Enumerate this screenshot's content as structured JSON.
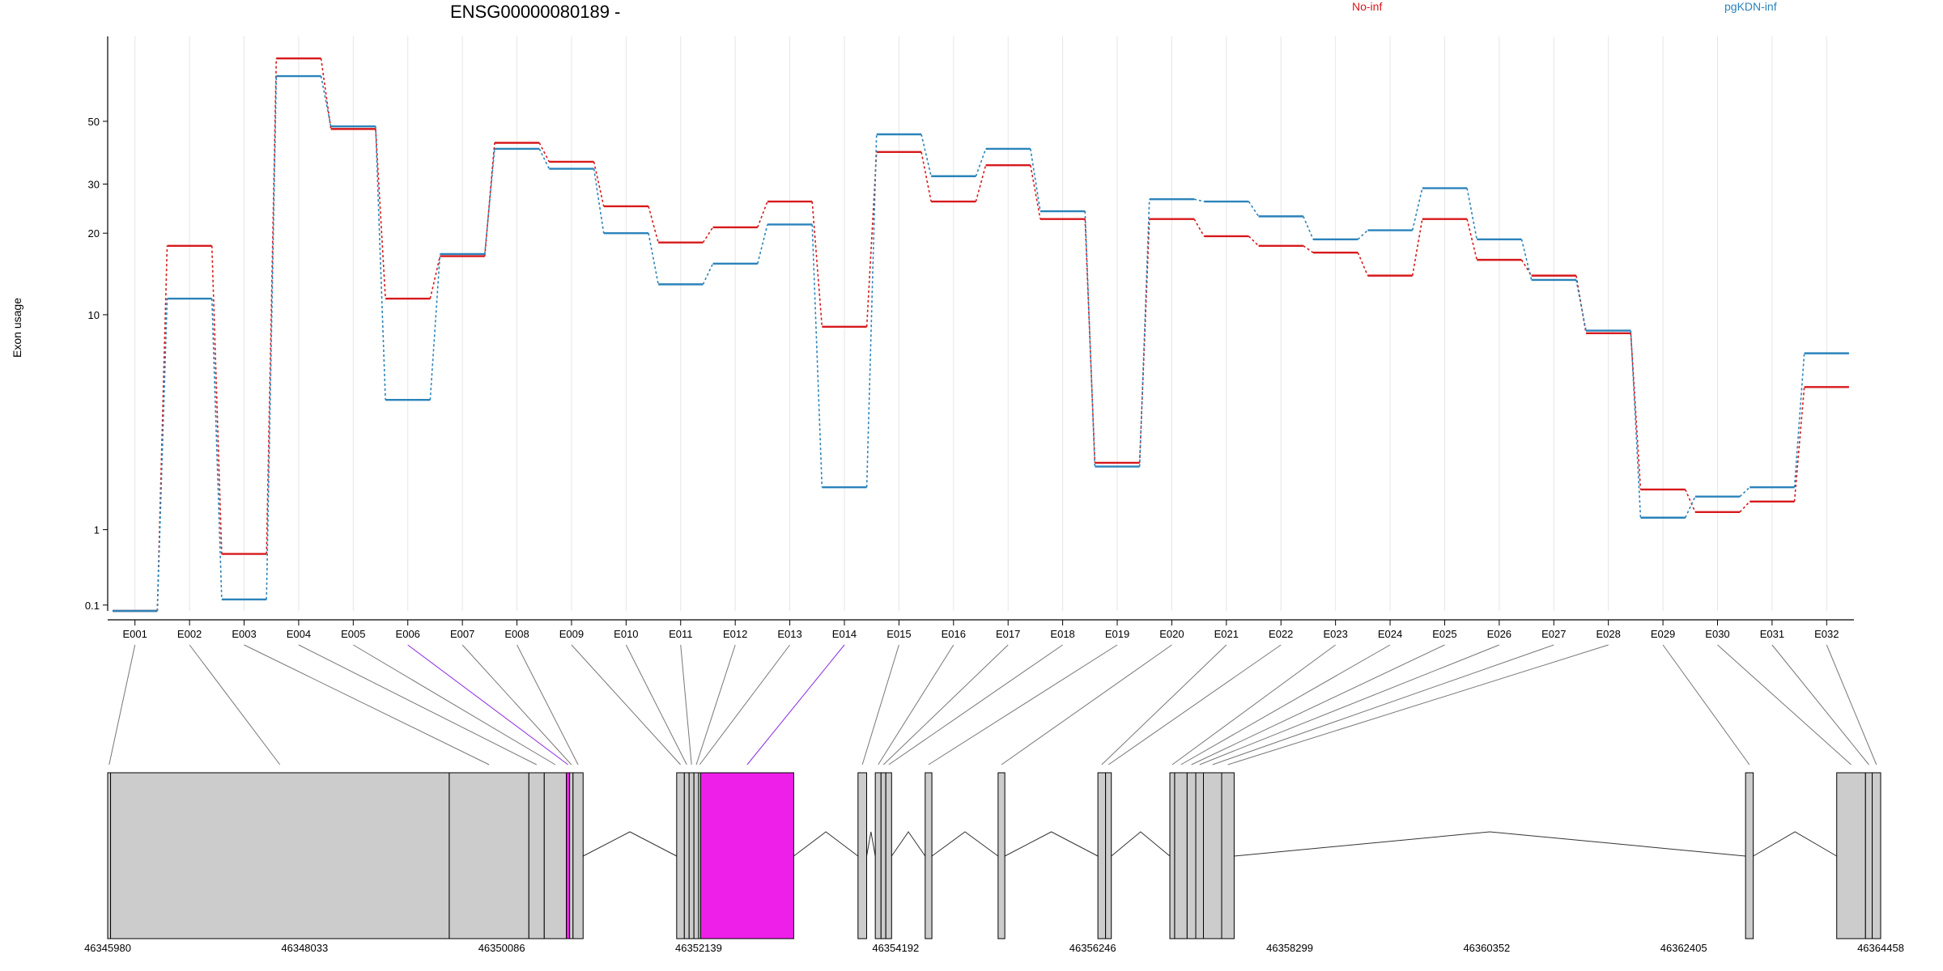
{
  "colors": {
    "no_inf": "#d7191c",
    "pgkdn_inf": "#2b83ba",
    "exon_fill": "#cccccc",
    "exon_highlight": "#ee1fe8",
    "highlight_connector": "#8b2be2",
    "grid": "#e6e6e6"
  },
  "chart_data": {
    "type": "line",
    "title": "ENSG00000080189 -",
    "ylabel": "Exon usage",
    "y_scale": "log1p",
    "y_ticks": [
      0.1,
      1,
      10,
      20,
      30,
      50
    ],
    "y_tick_labels": [
      "0.1",
      "1",
      "10",
      "20",
      "30",
      "50"
    ],
    "ylim": [
      0.05,
      99
    ],
    "categories": [
      "E001",
      "E002",
      "E003",
      "E004",
      "E005",
      "E006",
      "E007",
      "E008",
      "E009",
      "E010",
      "E011",
      "E012",
      "E013",
      "E014",
      "E015",
      "E016",
      "E017",
      "E018",
      "E019",
      "E020",
      "E021",
      "E022",
      "E023",
      "E024",
      "E025",
      "E026",
      "E027",
      "E028",
      "E029",
      "E030",
      "E031",
      "E032"
    ],
    "series": [
      {
        "name": "No-inf",
        "color": "#d7191c",
        "values": [
          0.05,
          18,
          0.65,
          83,
          47,
          11.5,
          16.5,
          42,
          36,
          25,
          18.5,
          21,
          26,
          9,
          39,
          26,
          35,
          22.5,
          2.4,
          22.5,
          19.5,
          18,
          17,
          14,
          22.5,
          16,
          14,
          8.5,
          1.75,
          1.3,
          1.5,
          5.2
        ]
      },
      {
        "name": "pgKDN-inf",
        "color": "#2b83ba",
        "values": [
          0.05,
          11.5,
          0.15,
          72,
          48,
          4.6,
          16.8,
          40,
          34,
          20,
          13,
          15.5,
          21.5,
          1.8,
          45,
          32,
          40,
          24,
          2.3,
          26.5,
          26,
          23,
          19,
          20.5,
          29,
          19,
          13.5,
          8.7,
          1.2,
          1.6,
          1.8,
          7.1
        ]
      }
    ],
    "gene_coordinates": {
      "start": 46345980,
      "end": 46364458,
      "tick_values": [
        46345980,
        46348033,
        46350086,
        46352139,
        46354192,
        46356246,
        46358299,
        46360352,
        46362405,
        46364458
      ],
      "exons": [
        {
          "id": "E001",
          "start": 46345980,
          "end": 46346010,
          "highlight": false
        },
        {
          "id": "E002",
          "start": 46346010,
          "end": 46349540,
          "highlight": false
        },
        {
          "id": "E003",
          "start": 46349540,
          "end": 46350370,
          "highlight": false
        },
        {
          "id": "E004",
          "start": 46350370,
          "end": 46350530,
          "highlight": false
        },
        {
          "id": "E005",
          "start": 46350530,
          "end": 46350760,
          "highlight": false
        },
        {
          "id": "E006",
          "start": 46350760,
          "end": 46350795,
          "highlight": true
        },
        {
          "id": "E007",
          "start": 46350795,
          "end": 46350830,
          "highlight": false
        },
        {
          "id": "E008",
          "start": 46350830,
          "end": 46350935,
          "highlight": false
        },
        {
          "id": "E009",
          "start": 46351910,
          "end": 46351990,
          "highlight": false
        },
        {
          "id": "E010",
          "start": 46351990,
          "end": 46352040,
          "highlight": false
        },
        {
          "id": "E011",
          "start": 46352040,
          "end": 46352090,
          "highlight": false
        },
        {
          "id": "E012",
          "start": 46352090,
          "end": 46352139,
          "highlight": false
        },
        {
          "id": "E013",
          "start": 46352139,
          "end": 46352160,
          "highlight": false
        },
        {
          "id": "E014",
          "start": 46352160,
          "end": 46353130,
          "highlight": true
        },
        {
          "id": "E015",
          "start": 46353800,
          "end": 46353890,
          "highlight": false
        },
        {
          "id": "E016",
          "start": 46353980,
          "end": 46354040,
          "highlight": false
        },
        {
          "id": "E017",
          "start": 46354040,
          "end": 46354090,
          "highlight": false
        },
        {
          "id": "E018",
          "start": 46354090,
          "end": 46354150,
          "highlight": false
        },
        {
          "id": "E019",
          "start": 46354500,
          "end": 46354570,
          "highlight": false
        },
        {
          "id": "E020",
          "start": 46355260,
          "end": 46355330,
          "highlight": false
        },
        {
          "id": "E021",
          "start": 46356300,
          "end": 46356380,
          "highlight": false
        },
        {
          "id": "E022",
          "start": 46356380,
          "end": 46356440,
          "highlight": false
        },
        {
          "id": "E023",
          "start": 46357050,
          "end": 46357100,
          "highlight": false
        },
        {
          "id": "E024",
          "start": 46357100,
          "end": 46357230,
          "highlight": false
        },
        {
          "id": "E025",
          "start": 46357230,
          "end": 46357320,
          "highlight": false
        },
        {
          "id": "E026",
          "start": 46357320,
          "end": 46357400,
          "highlight": false
        },
        {
          "id": "E027",
          "start": 46357400,
          "end": 46357590,
          "highlight": false
        },
        {
          "id": "E028",
          "start": 46357590,
          "end": 46357720,
          "highlight": false
        },
        {
          "id": "E029",
          "start": 46363050,
          "end": 46363130,
          "highlight": false
        },
        {
          "id": "E030",
          "start": 46364000,
          "end": 46364300,
          "highlight": false
        },
        {
          "id": "E031",
          "start": 46364300,
          "end": 46364370,
          "highlight": false
        },
        {
          "id": "E032",
          "start": 46364370,
          "end": 46364458,
          "highlight": false
        }
      ]
    }
  }
}
